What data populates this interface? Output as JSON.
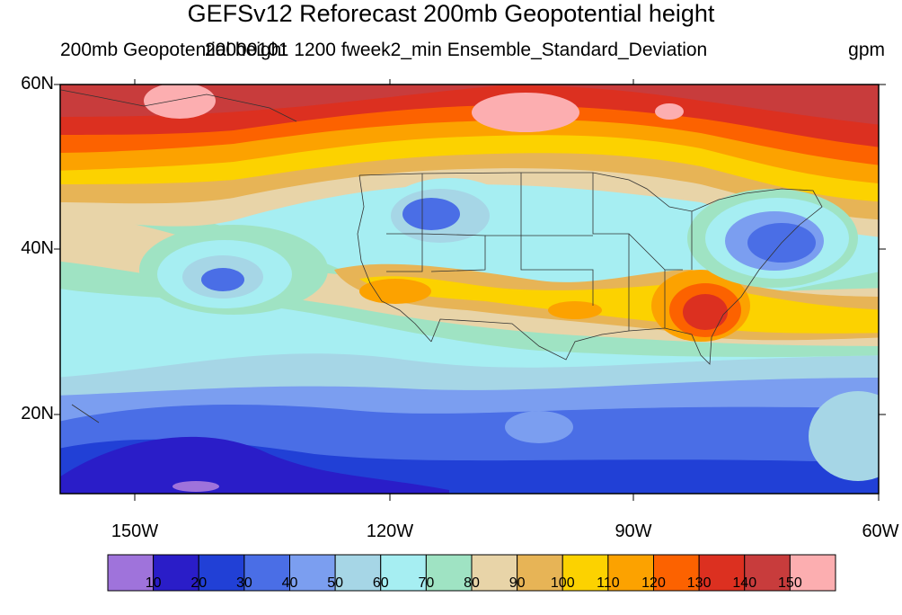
{
  "title": "GEFSv12 Reforecast 200mb Geopotential height",
  "left_subtitle": "200mb Geopotential height",
  "center_subtitle": "20000101 1200 fweek2_min Ensemble_Standard_Deviation",
  "right_subtitle": "gpm",
  "lat_labels": [
    "60N",
    "40N",
    "20N"
  ],
  "lon_labels": [
    "150W",
    "120W",
    "90W",
    "60W"
  ],
  "colorbar": {
    "colors": [
      "#9f73db",
      "#2a1dc8",
      "#2140d6",
      "#4a6ee6",
      "#7b9ef0",
      "#a6d6e6",
      "#a6eef2",
      "#9fe3c3",
      "#e8d4a8",
      "#e7b456",
      "#fcd200",
      "#fca200",
      "#fc6200",
      "#dc3020",
      "#c83c3c",
      "#fcaeb0"
    ],
    "labels": [
      "10",
      "20",
      "30",
      "40",
      "50",
      "60",
      "70",
      "80",
      "90",
      "100",
      "110",
      "120",
      "130",
      "140",
      "150"
    ]
  }
}
